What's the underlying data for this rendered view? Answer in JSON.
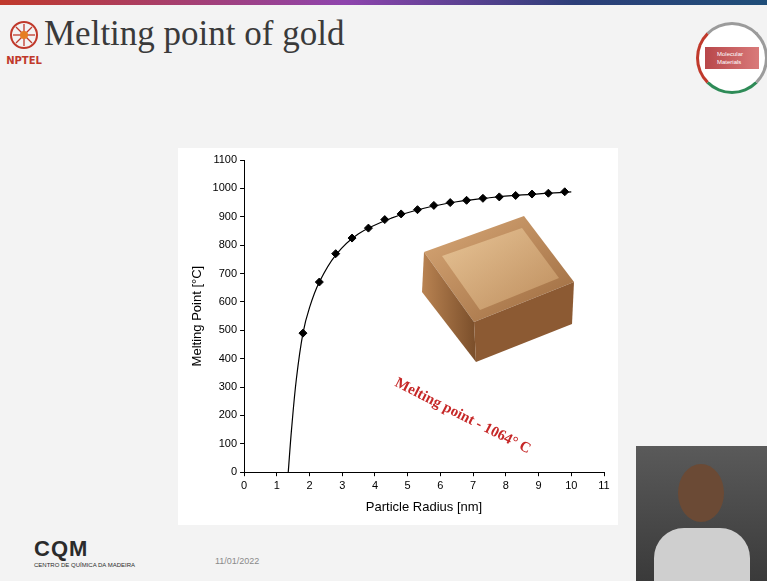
{
  "slide": {
    "title": "Melting point of gold",
    "logo_left": "NPTEL",
    "logo_right": "Molecular Materials",
    "footer_logo": "CQM",
    "footer_logo_subtitle": "CENTRO DE QUÍMICA DA MADEIRA",
    "date": "11/01/2022"
  },
  "chart_data": {
    "type": "scatter",
    "x_label": "Particle Radius [nm]",
    "y_label": "Melting Point [°C]",
    "annotations": [
      "Melting point - 1064° C"
    ],
    "xlim": [
      0,
      11
    ],
    "xticks": [
      0,
      1,
      2,
      3,
      4,
      5,
      6,
      7,
      8,
      9,
      10,
      11
    ],
    "ylim": [
      0,
      1100
    ],
    "yticks": [
      0,
      100,
      200,
      300,
      400,
      500,
      600,
      700,
      800,
      900,
      1000,
      1100
    ],
    "grid": false,
    "series": [
      {
        "type": "scatter",
        "marker": "diamond",
        "color": "#000000",
        "x": [
          1.8,
          2.3,
          2.8,
          3.3,
          3.8,
          4.3,
          4.8,
          5.3,
          5.8,
          6.3,
          6.8,
          7.3,
          7.8,
          8.3,
          8.8,
          9.3,
          9.8
        ],
        "values": [
          490,
          670,
          770,
          825,
          860,
          890,
          910,
          925,
          940,
          950,
          958,
          965,
          970,
          975,
          980,
          983,
          988
        ]
      },
      {
        "type": "line",
        "marker": "none",
        "line_style": "solid",
        "color": "#000000",
        "x": [
          1.35,
          1.45,
          1.6,
          1.8,
          2.0,
          2.3,
          2.8,
          3.5,
          4.5,
          5.5,
          6.5,
          7.5,
          8.5,
          10.0
        ],
        "values": [
          0,
          150,
          330,
          490,
          580,
          670,
          765,
          840,
          895,
          930,
          953,
          967,
          977,
          988
        ]
      }
    ]
  }
}
